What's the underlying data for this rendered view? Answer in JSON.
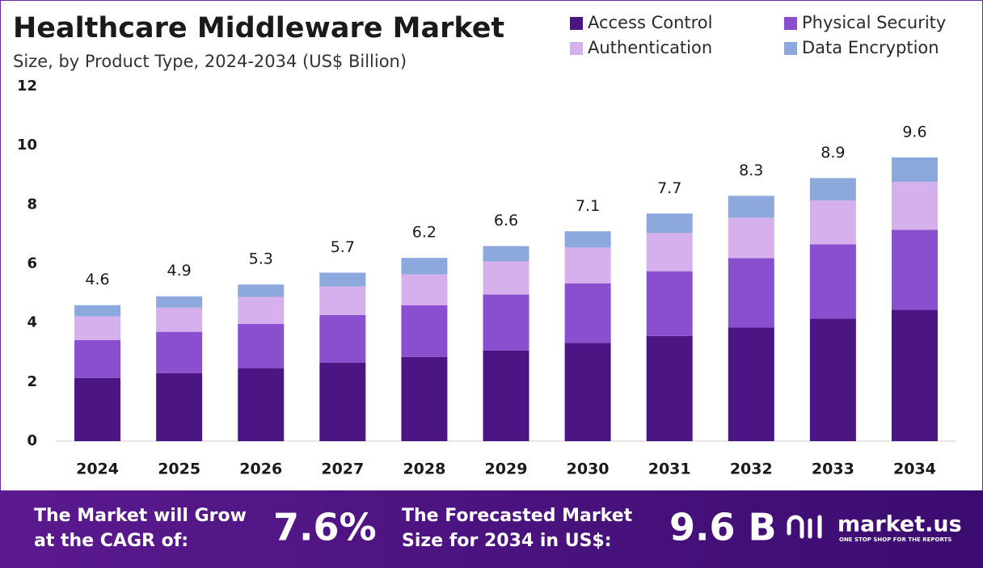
{
  "chart_data": {
    "type": "stacked-bar",
    "title": "Healthcare Middleware Market",
    "subtitle": "Size, by Product Type, 2024-2034 (US$ Billion)",
    "categories": [
      "2024",
      "2025",
      "2026",
      "2027",
      "2028",
      "2029",
      "2030",
      "2031",
      "2032",
      "2033",
      "2034"
    ],
    "series": [
      {
        "name": "Access Control",
        "color": "#4b1683",
        "values": [
          2.14,
          2.3,
          2.47,
          2.66,
          2.85,
          3.07,
          3.32,
          3.56,
          3.84,
          4.14,
          4.44
        ]
      },
      {
        "name": "Physical Security",
        "color": "#8a4fcf",
        "values": [
          1.28,
          1.4,
          1.5,
          1.61,
          1.75,
          1.89,
          2.02,
          2.19,
          2.35,
          2.52,
          2.71
        ]
      },
      {
        "name": "Authentication",
        "color": "#d6b0ec",
        "values": [
          0.8,
          0.82,
          0.91,
          0.96,
          1.04,
          1.12,
          1.21,
          1.29,
          1.37,
          1.48,
          1.62
        ]
      },
      {
        "name": "Data Encryption",
        "color": "#8da8dc",
        "values": [
          0.38,
          0.38,
          0.42,
          0.47,
          0.56,
          0.52,
          0.55,
          0.66,
          0.74,
          0.76,
          0.83
        ]
      }
    ],
    "totals": [
      4.6,
      4.9,
      5.3,
      5.7,
      6.2,
      6.6,
      7.1,
      7.7,
      8.3,
      8.9,
      9.6
    ],
    "ylim": [
      0,
      12
    ],
    "yticks": [
      0,
      2,
      4,
      6,
      8,
      10,
      12
    ],
    "grid": false,
    "legend": "top-right"
  },
  "footer": {
    "cagr_label_1": "The Market will Grow",
    "cagr_label_2": "at the CAGR of:",
    "cagr": "7.6%",
    "forecast_label_1": "The Forecasted Market",
    "forecast_label_2": "Size for 2034 in US$:",
    "forecast": "9.6 B",
    "brand": "market.us",
    "tagline": "ONE STOP SHOP FOR THE REPORTS"
  }
}
